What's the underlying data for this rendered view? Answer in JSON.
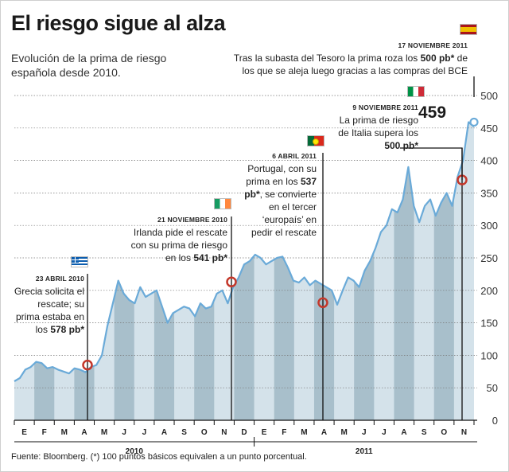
{
  "title": "El riesgo sigue al alza",
  "subtitle": "Evolución de la prima de riesgo española desde 2010.",
  "source": "Fuente: Bloomberg. (*) 100 puntos básicos equivalen a un punto porcentual.",
  "highlight_value": "459",
  "annotations": {
    "grecia": {
      "date": "23 ABRIL 2010",
      "text_a": "Grecia solicita el rescate; su prima estaba en los ",
      "value": "578 pb*"
    },
    "irlanda": {
      "date": "21 NOVIEMBRE 2010",
      "text_a": "Irlanda pide el rescate con su prima de riesgo en los ",
      "value": "541 pb*"
    },
    "portugal": {
      "date": "6 ABRIL 2011",
      "text_a": "Portugal, con su prima en los ",
      "value": "537 pb*",
      "text_b": ", se convierte en el tercer ‘europaís’ en pedir el rescate"
    },
    "italia": {
      "date": "9 NOVIEMBRE 2011",
      "text_a": "La prima de riesgo de Italia supera los ",
      "value": "500 pb*"
    },
    "espana": {
      "date": "17 NOVIEMBRE 2011",
      "text_a": "Tras la subasta del Tesoro la prima roza los ",
      "value": "500 pb*",
      "text_b": " de los que se aleja luego gracias a las compras del BCE"
    }
  },
  "colors": {
    "line": "#6aaad8",
    "band_light": "#d4e2ea",
    "band_dark": "#a8bfcb",
    "marker": "#c4382b",
    "text": "#1a1a1a"
  },
  "chart_data": {
    "type": "area",
    "title": "El riesgo sigue al alza",
    "xlabel": "",
    "ylabel": "",
    "ylim": [
      0,
      500
    ],
    "yticks": [
      0,
      50,
      100,
      150,
      200,
      250,
      300,
      350,
      400,
      450,
      500
    ],
    "grid": true,
    "months": [
      "E",
      "F",
      "M",
      "A",
      "M",
      "J",
      "J",
      "A",
      "S",
      "O",
      "N",
      "D",
      "E",
      "F",
      "M",
      "A",
      "M",
      "J",
      "J",
      "A",
      "S",
      "O",
      "N"
    ],
    "years": [
      "2010",
      "2011"
    ],
    "series": [
      {
        "values": [
          60,
          65,
          78,
          82,
          90,
          88,
          80,
          82,
          78,
          75,
          72,
          80,
          78,
          74,
          82,
          85,
          100,
          145,
          180,
          215,
          195,
          185,
          180,
          205,
          190,
          195,
          200,
          175,
          150,
          165,
          170,
          175,
          172,
          160,
          180,
          172,
          175,
          195,
          200,
          180,
          205,
          220,
          240,
          245,
          255,
          250,
          240,
          245,
          250,
          252,
          235,
          215,
          212,
          220,
          208,
          215,
          210,
          205,
          200,
          178,
          200,
          220,
          215,
          205,
          230,
          245,
          265,
          290,
          300,
          325,
          320,
          340,
          390,
          330,
          305,
          330,
          340,
          315,
          335,
          350,
          330,
          375,
          400,
          459,
          452
        ]
      }
    ],
    "events": [
      {
        "date": "23 ABRIL 2010",
        "value": 85
      },
      {
        "date": "21 NOVIEMBRE 2010",
        "value": 213
      },
      {
        "date": "6 ABRIL 2011",
        "value": 181
      },
      {
        "date": "9 NOVIEMBRE 2011",
        "value": 370
      },
      {
        "date": "17 NOVIEMBRE 2011",
        "value": 459
      }
    ]
  }
}
